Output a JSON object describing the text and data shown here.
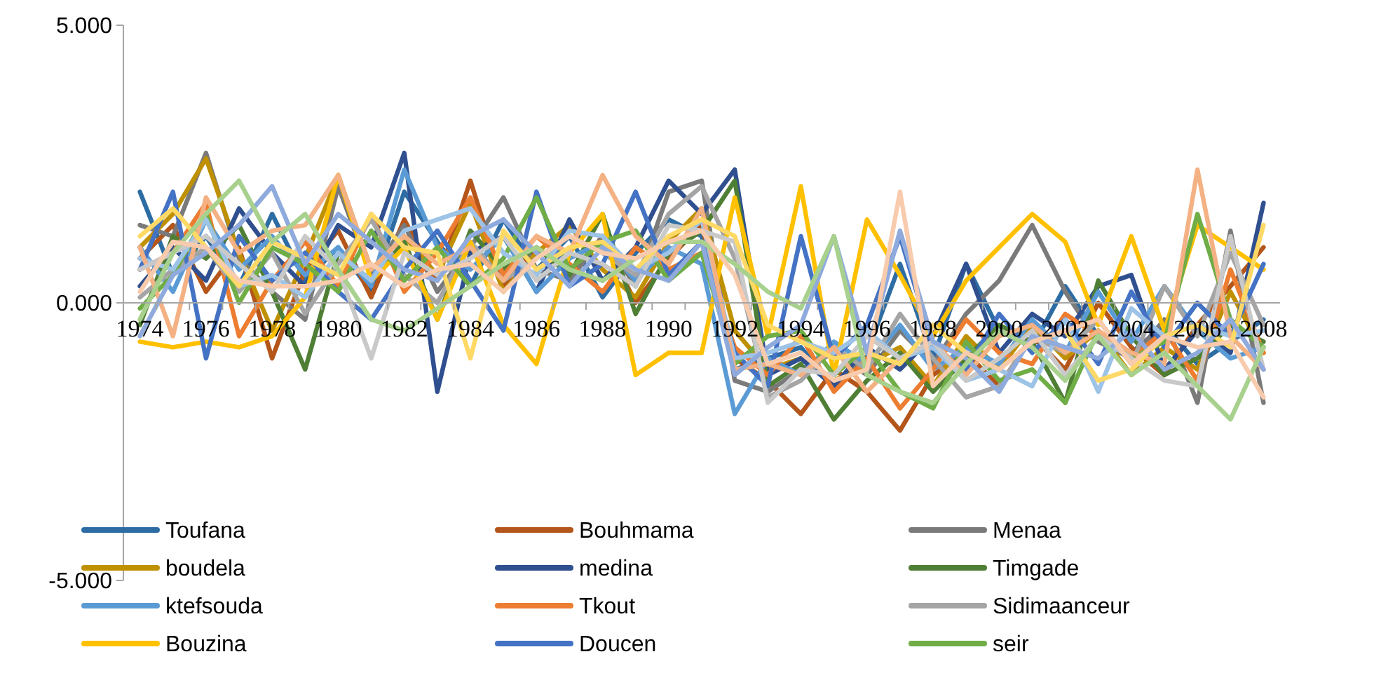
{
  "chart_data": {
    "type": "line",
    "categories": [
      "1974",
      null,
      "1976",
      null,
      "1978",
      null,
      "1980",
      null,
      "1982",
      null,
      "1984",
      null,
      "1986",
      null,
      "1988",
      null,
      "1990",
      null,
      "1992",
      null,
      "1994",
      null,
      "1996",
      null,
      "1998",
      null,
      "2000",
      null,
      "2002",
      null,
      "2004",
      null,
      "2006",
      null,
      "2008"
    ],
    "ylim": [
      -5,
      5
    ],
    "yticks": [
      {
        "value": -5,
        "label": "-5.000"
      },
      {
        "value": 0,
        "label": "0.000"
      },
      {
        "value": 5,
        "label": "5.000"
      }
    ],
    "grid": false,
    "legend": "bottom",
    "marker": "none",
    "line_style": "solid",
    "series": [
      {
        "name": "Toufana",
        "color": "#2e6da4",
        "values": [
          2.0,
          0.5,
          1.2,
          0.3,
          1.6,
          0.4,
          1.0,
          0.2,
          2.0,
          1.1,
          0.3,
          1.5,
          0.6,
          1.2,
          0.1,
          0.9,
          1.5,
          1.2,
          -1.2,
          -1.0,
          -0.8,
          -1.5,
          -0.9,
          0.7,
          -1.0,
          0.7,
          -0.5,
          -0.8,
          0.3,
          -0.6,
          -0.9,
          -0.4,
          -1.1,
          -0.7,
          -0.3
        ]
      },
      {
        "name": "Bouhmama",
        "color": "#b4551a",
        "values": [
          0.8,
          1.4,
          0.2,
          1.0,
          -1.0,
          0.6,
          1.3,
          0.1,
          1.5,
          0.4,
          2.2,
          0.3,
          1.0,
          0.5,
          1.2,
          0.0,
          0.8,
          1.4,
          -1.0,
          -1.4,
          -2.0,
          -1.2,
          -1.6,
          -2.3,
          -1.3,
          -0.9,
          -1.5,
          -0.6,
          -1.2,
          0.0,
          -0.8,
          -1.3,
          -0.4,
          0.3,
          1.0
        ]
      },
      {
        "name": "Menaa",
        "color": "#7a7a7a",
        "values": [
          1.4,
          1.2,
          2.7,
          0.8,
          0.2,
          -0.3,
          2.1,
          0.5,
          1.4,
          0.2,
          1.0,
          1.9,
          0.6,
          0.4,
          1.2,
          0.3,
          2.0,
          2.2,
          -1.4,
          -1.6,
          -1.2,
          -0.9,
          -1.3,
          -0.5,
          -1.1,
          -0.2,
          0.4,
          1.4,
          0.2,
          -0.7,
          -1.0,
          -0.3,
          -1.8,
          1.3,
          -1.8
        ]
      },
      {
        "name": "boudela",
        "color": "#bf9000",
        "values": [
          1.0,
          1.6,
          2.6,
          0.9,
          -0.5,
          0.8,
          2.3,
          0.6,
          1.2,
          0.5,
          1.8,
          0.2,
          0.9,
          1.4,
          0.6,
          0.1,
          1.1,
          1.7,
          -0.5,
          -1.2,
          -1.0,
          -1.4,
          -1.1,
          -0.8,
          -1.5,
          -0.6,
          -1.2,
          -0.4,
          -1.0,
          -0.5,
          -1.3,
          -0.8,
          -1.2,
          0.2,
          -0.9
        ]
      },
      {
        "name": "medina",
        "color": "#2f4f8f",
        "values": [
          0.3,
          1.0,
          0.4,
          1.7,
          0.9,
          0.3,
          1.4,
          1.0,
          2.7,
          -1.6,
          0.9,
          1.2,
          0.2,
          1.5,
          0.4,
          1.0,
          2.2,
          1.6,
          2.4,
          -1.3,
          -1.0,
          -1.5,
          -0.8,
          -1.2,
          -0.6,
          0.7,
          -0.9,
          -0.2,
          -0.6,
          0.3,
          0.5,
          -1.2,
          -0.5,
          -0.9,
          1.8
        ]
      },
      {
        "name": "Timgade",
        "color": "#4f7f35",
        "values": [
          -0.4,
          1.2,
          0.8,
          1.4,
          0.2,
          -1.2,
          0.9,
          0.4,
          1.1,
          -0.3,
          1.3,
          0.6,
          1.0,
          0.5,
          1.6,
          -0.2,
          0.9,
          1.3,
          2.2,
          -1.5,
          -1.1,
          -2.1,
          -1.4,
          -0.9,
          -1.6,
          -1.0,
          -0.4,
          -0.7,
          -1.8,
          0.4,
          -0.6,
          -1.3,
          -1.0,
          -0.4,
          -0.7
        ]
      },
      {
        "name": "ktefsouda",
        "color": "#5b9bd5",
        "values": [
          1.0,
          0.2,
          1.5,
          0.6,
          1.2,
          0.5,
          1.0,
          0.3,
          2.4,
          1.0,
          0.6,
          1.2,
          0.2,
          0.8,
          1.1,
          0.4,
          1.0,
          0.7,
          -2.0,
          -1.0,
          -1.3,
          -0.7,
          -1.1,
          -0.4,
          -1.2,
          -0.8,
          -1.1,
          -0.3,
          -0.9,
          0.2,
          -0.7,
          0.3,
          -0.5,
          -1.0,
          -0.8
        ]
      },
      {
        "name": "Tkout",
        "color": "#ed7d31",
        "values": [
          0.6,
          0.9,
          1.8,
          -0.6,
          0.4,
          1.1,
          0.3,
          1.6,
          0.2,
          0.9,
          1.9,
          0.5,
          1.2,
          0.7,
          0.2,
          1.0,
          0.6,
          0.9,
          -0.8,
          -1.3,
          -0.6,
          -1.6,
          -1.0,
          -1.9,
          -1.2,
          -0.3,
          -0.9,
          -1.1,
          -0.2,
          -0.6,
          -1.0,
          -0.5,
          -1.4,
          0.6,
          -0.9
        ]
      },
      {
        "name": "Sidimaanceur",
        "color": "#a5a5a5",
        "values": [
          0.1,
          0.6,
          1.0,
          0.2,
          0.9,
          -0.2,
          0.7,
          1.5,
          0.5,
          0.0,
          1.1,
          0.4,
          0.8,
          1.2,
          0.9,
          0.5,
          1.6,
          2.1,
          0.8,
          -1.7,
          -1.4,
          -0.8,
          -1.2,
          -0.2,
          -1.0,
          -1.7,
          -1.5,
          -0.6,
          -0.9,
          -0.3,
          -1.1,
          0.3,
          -0.6,
          0.9,
          -0.4
        ]
      },
      {
        "name": "Bouzina",
        "color": "#ffc000",
        "values": [
          -0.7,
          -0.8,
          -0.7,
          -0.8,
          -0.6,
          0.1,
          2.3,
          0.4,
          1.0,
          -0.3,
          1.1,
          -0.4,
          -1.1,
          0.9,
          1.6,
          -1.3,
          -0.9,
          -0.9,
          1.9,
          -0.6,
          2.1,
          -1.3,
          1.5,
          0.5,
          -0.6,
          0.4,
          1.0,
          1.6,
          1.1,
          -0.4,
          1.2,
          -0.5,
          1.4,
          1.0,
          0.6
        ]
      },
      {
        "name": "Doucen",
        "color": "#4472c4",
        "values": [
          0.6,
          2.0,
          -1.0,
          1.2,
          0.4,
          0.9,
          0.2,
          -0.3,
          0.6,
          1.3,
          0.4,
          -0.5,
          2.0,
          0.3,
          0.7,
          2.0,
          0.5,
          1.1,
          -0.9,
          -1.5,
          1.2,
          -1.0,
          -0.4,
          1.2,
          -0.8,
          -1.2,
          -0.2,
          -0.9,
          -0.3,
          -1.1,
          0.2,
          -0.8,
          0.0,
          -0.6,
          0.7
        ]
      },
      {
        "name": "seir",
        "color": "#70ad47",
        "values": [
          -0.1,
          0.5,
          1.6,
          0.0,
          1.0,
          0.7,
          0.2,
          1.3,
          0.4,
          1.0,
          0.3,
          0.8,
          1.9,
          0.6,
          1.1,
          1.3,
          0.4,
          0.9,
          -1.1,
          -0.6,
          -0.5,
          -1.3,
          -0.8,
          -1.6,
          -1.9,
          -0.7,
          -1.4,
          -1.2,
          -1.8,
          -0.5,
          -1.0,
          -0.7,
          1.6,
          -0.3,
          -0.8
        ]
      },
      {
        "color": "#9dc3e6",
        "values": [
          0.8,
          0.6,
          1.5,
          0.3,
          0.5,
          0.1,
          0.9,
          0.4,
          1.3,
          1.5,
          1.7,
          0.9,
          0.5,
          1.3,
          1.2,
          0.6,
          0.9,
          1.5,
          -1.0,
          -0.9,
          -0.7,
          -0.9,
          -0.5,
          -1.0,
          -0.8,
          -1.4,
          -1.2,
          -1.5,
          -0.3,
          -1.6,
          -0.1,
          -0.6,
          -0.4,
          -0.6,
          -0.5
        ]
      },
      {
        "color": "#f4b183",
        "values": [
          1.0,
          -0.6,
          1.9,
          0.9,
          1.3,
          1.4,
          2.3,
          0.6,
          1.2,
          0.7,
          1.0,
          0.4,
          1.2,
          0.9,
          2.3,
          1.2,
          0.7,
          1.7,
          -1.2,
          -1.1,
          -1.3,
          -0.8,
          -1.6,
          -1.0,
          -0.7,
          -1.3,
          -0.6,
          -0.4,
          -0.9,
          -0.5,
          -0.9,
          -1.1,
          2.4,
          -0.6,
          -1.2
        ]
      },
      {
        "color": "#c9c9c9",
        "values": [
          0.6,
          0.9,
          1.2,
          0.7,
          0.2,
          1.2,
          0.6,
          -1.0,
          0.9,
          0.5,
          0.8,
          1.2,
          0.4,
          0.9,
          0.7,
          0.3,
          1.4,
          1.3,
          1.1,
          -1.8,
          -1.2,
          -1.3,
          -0.6,
          -1.0,
          -0.7,
          -1.4,
          -1.0,
          -0.5,
          -1.3,
          -0.6,
          -1.0,
          -1.4,
          -1.5,
          1.2,
          -1.2
        ]
      },
      {
        "color": "#ffd966",
        "values": [
          1.2,
          1.7,
          1.0,
          0.3,
          1.1,
          0.8,
          0.5,
          1.6,
          1.0,
          0.9,
          -1.0,
          1.3,
          0.6,
          1.0,
          1.1,
          0.6,
          1.2,
          1.5,
          1.2,
          -0.4,
          -0.7,
          -1.0,
          -0.9,
          -1.1,
          -0.4,
          -0.9,
          -1.2,
          -0.7,
          -0.5,
          -1.4,
          -1.2,
          -0.6,
          -0.4,
          -0.8,
          1.4
        ]
      },
      {
        "color": "#8faadc",
        "values": [
          -0.6,
          0.5,
          0.9,
          1.4,
          2.1,
          0.7,
          1.6,
          1.1,
          0.6,
          0.4,
          1.2,
          1.5,
          0.9,
          0.3,
          1.0,
          0.6,
          0.4,
          1.1,
          -1.3,
          -0.8,
          -0.4,
          1.2,
          -0.9,
          1.3,
          -0.7,
          -1.0,
          -1.6,
          -0.6,
          -0.8,
          -1.0,
          -0.5,
          -1.2,
          -0.9,
          -0.3,
          -1.2
        ]
      },
      {
        "color": "#a9d18e",
        "values": [
          -0.3,
          0.9,
          1.6,
          2.2,
          1.1,
          1.6,
          0.6,
          -0.3,
          -0.5,
          -0.1,
          0.3,
          0.7,
          1.0,
          0.6,
          0.4,
          0.8,
          1.1,
          1.1,
          0.7,
          0.2,
          -0.1,
          1.2,
          -1.3,
          -1.6,
          -1.8,
          -1.1,
          -0.5,
          -0.8,
          -1.4,
          -0.6,
          -1.3,
          -0.9,
          -1.5,
          -2.1,
          -0.8
        ]
      },
      {
        "color": "#f8cbad",
        "values": [
          0.2,
          1.1,
          1.0,
          0.4,
          0.3,
          0.3,
          0.4,
          0.7,
          0.3,
          0.6,
          0.7,
          0.2,
          0.8,
          1.2,
          0.9,
          0.8,
          1.1,
          1.3,
          0.5,
          -1.1,
          -0.9,
          -1.4,
          -1.2,
          2.0,
          -1.5,
          -0.9,
          -1.2,
          -0.7,
          -0.5,
          -0.3,
          -1.1,
          -0.6,
          -0.8,
          -0.7,
          -1.7
        ]
      }
    ]
  }
}
